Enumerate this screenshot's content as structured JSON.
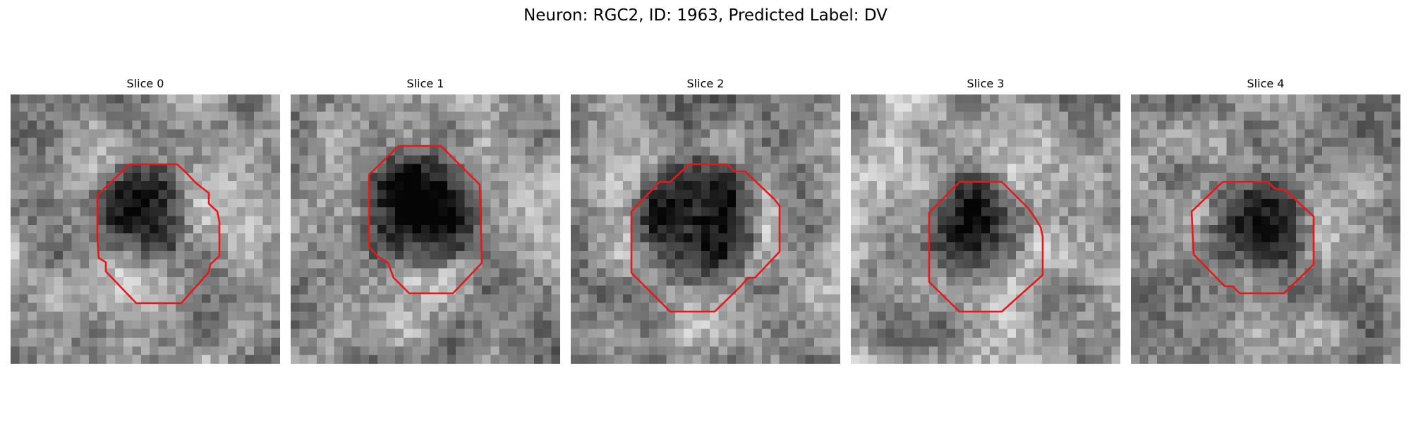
{
  "figure": {
    "suptitle": "Neuron: RGC2, ID: 1963, Predicted Label: DV",
    "contour_color": "#e31a1c"
  },
  "panels": [
    {
      "title": "Slice 0",
      "seed": 11,
      "contrast": 0.55
    },
    {
      "title": "Slice 1",
      "seed": 23,
      "contrast": 0.75
    },
    {
      "title": "Slice 2",
      "seed": 37,
      "contrast": 0.8
    },
    {
      "title": "Slice 3",
      "seed": 41,
      "contrast": 0.55
    },
    {
      "title": "Slice 4",
      "seed": 53,
      "contrast": 0.55
    }
  ]
}
